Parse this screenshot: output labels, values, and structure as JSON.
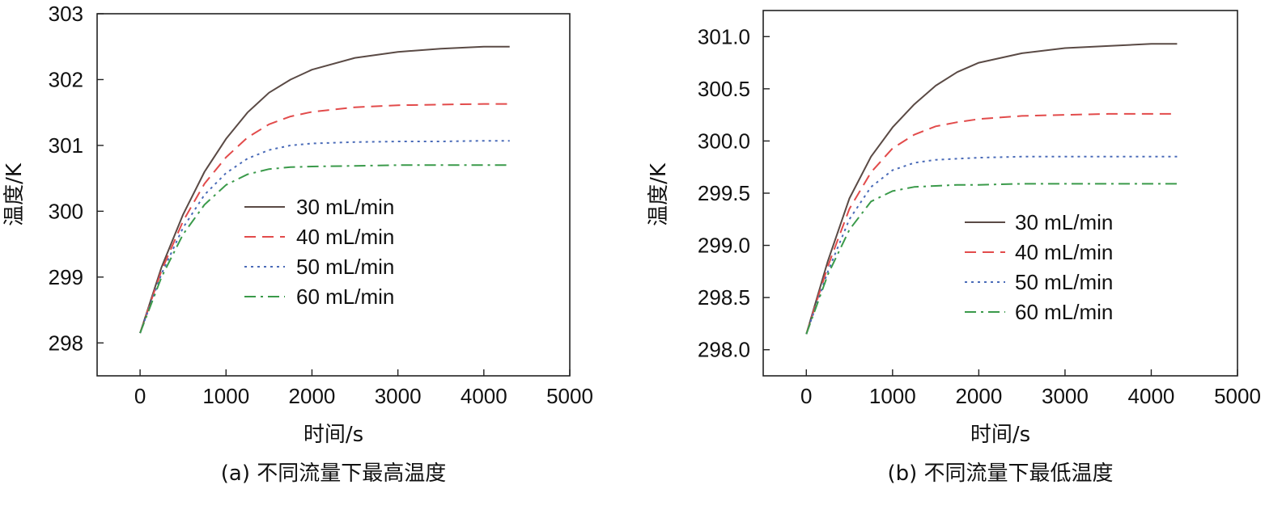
{
  "chart_data": [
    {
      "type": "line",
      "caption": "(a) 不同流量下最高温度",
      "xlabel": "时间/s",
      "ylabel": "温度/K",
      "xlim": [
        -500,
        5000
      ],
      "ylim": [
        297.5,
        303
      ],
      "xticks": [
        0,
        1000,
        2000,
        3000,
        4000,
        5000
      ],
      "yticks": [
        298,
        299,
        300,
        301,
        302,
        303
      ],
      "ytick_labels": [
        "298",
        "299",
        "300",
        "301",
        "302",
        "303"
      ],
      "legend_position": "center-right",
      "series": [
        {
          "name": "30 mL/min",
          "color": "#5a4a45",
          "dash": "solid",
          "x": [
            0,
            250,
            500,
            750,
            1000,
            1250,
            1500,
            1750,
            2000,
            2500,
            3000,
            3500,
            4000,
            4300
          ],
          "y": [
            298.15,
            299.15,
            299.95,
            300.6,
            301.1,
            301.5,
            301.8,
            302.0,
            302.15,
            302.33,
            302.42,
            302.47,
            302.5,
            302.5
          ]
        },
        {
          "name": "40 mL/min",
          "color": "#e24b4b",
          "dash": "dashed",
          "x": [
            0,
            250,
            500,
            750,
            1000,
            1250,
            1500,
            1750,
            2000,
            2500,
            3000,
            3500,
            4000,
            4300
          ],
          "y": [
            298.15,
            299.1,
            299.85,
            300.42,
            300.82,
            301.12,
            301.32,
            301.44,
            301.51,
            301.58,
            301.61,
            301.62,
            301.63,
            301.63
          ]
        },
        {
          "name": "50 mL/min",
          "color": "#4a6bb8",
          "dash": "dotted",
          "x": [
            0,
            250,
            500,
            750,
            1000,
            1250,
            1500,
            1750,
            2000,
            2500,
            3000,
            3500,
            4000,
            4300
          ],
          "y": [
            298.15,
            299.05,
            299.75,
            300.25,
            300.58,
            300.8,
            300.93,
            301.0,
            301.03,
            301.05,
            301.06,
            301.06,
            301.07,
            301.07
          ]
        },
        {
          "name": "60 mL/min",
          "color": "#3a9a4a",
          "dash": "dashdot",
          "x": [
            0,
            250,
            500,
            750,
            1000,
            1250,
            1500,
            1750,
            2000,
            2500,
            3000,
            3500,
            4000,
            4300
          ],
          "y": [
            298.15,
            299.0,
            299.65,
            300.1,
            300.4,
            300.56,
            300.64,
            300.67,
            300.68,
            300.69,
            300.7,
            300.7,
            300.7,
            300.7
          ]
        }
      ]
    },
    {
      "type": "line",
      "caption": "(b) 不同流量下最低温度",
      "xlabel": "时间/s",
      "ylabel": "温度/K",
      "xlim": [
        -500,
        5000
      ],
      "ylim": [
        297.75,
        301.25
      ],
      "xticks": [
        0,
        1000,
        2000,
        3000,
        4000,
        5000
      ],
      "yticks": [
        298.0,
        298.5,
        299.0,
        299.5,
        300.0,
        300.5,
        301.0
      ],
      "ytick_labels": [
        "298.0",
        "298.5",
        "299.0",
        "299.5",
        "300.0",
        "300.5",
        "301.0"
      ],
      "legend_position": "center-right",
      "series": [
        {
          "name": "30 mL/min",
          "color": "#5a4a45",
          "dash": "solid",
          "x": [
            0,
            250,
            500,
            750,
            1000,
            1250,
            1500,
            1750,
            2000,
            2500,
            3000,
            3500,
            4000,
            4300
          ],
          "y": [
            298.15,
            298.85,
            299.45,
            299.85,
            300.13,
            300.35,
            300.53,
            300.66,
            300.75,
            300.84,
            300.89,
            300.91,
            300.93,
            300.93
          ]
        },
        {
          "name": "40 mL/min",
          "color": "#e24b4b",
          "dash": "dashed",
          "x": [
            0,
            250,
            500,
            750,
            1000,
            1250,
            1500,
            1750,
            2000,
            2500,
            3000,
            3500,
            4000,
            4300
          ],
          "y": [
            298.15,
            298.8,
            299.35,
            299.7,
            299.93,
            300.06,
            300.14,
            300.18,
            300.21,
            300.24,
            300.25,
            300.26,
            300.26,
            300.26
          ]
        },
        {
          "name": "50 mL/min",
          "color": "#4a6bb8",
          "dash": "dotted",
          "x": [
            0,
            250,
            500,
            750,
            1000,
            1250,
            1500,
            1750,
            2000,
            2500,
            3000,
            3500,
            4000,
            4300
          ],
          "y": [
            298.15,
            298.75,
            299.25,
            299.56,
            299.72,
            299.79,
            299.82,
            299.83,
            299.84,
            299.85,
            299.85,
            299.85,
            299.85,
            299.85
          ]
        },
        {
          "name": "60 mL/min",
          "color": "#3a9a4a",
          "dash": "dashdot",
          "x": [
            0,
            250,
            500,
            750,
            1000,
            1250,
            1500,
            1750,
            2000,
            2500,
            3000,
            3500,
            4000,
            4300
          ],
          "y": [
            298.15,
            298.72,
            299.15,
            299.42,
            299.52,
            299.56,
            299.57,
            299.58,
            299.58,
            299.59,
            299.59,
            299.59,
            299.59,
            299.59
          ]
        }
      ]
    }
  ]
}
